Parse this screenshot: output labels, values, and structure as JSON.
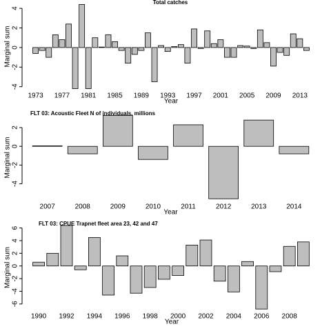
{
  "chart_data": [
    {
      "type": "bar",
      "title": "Total catches",
      "y_label": "Marginal sum",
      "x_label": "Year",
      "color": "#bebebe",
      "x": [
        1973,
        1974,
        1975,
        1976,
        1977,
        1978,
        1979,
        1980,
        1981,
        1982,
        1983,
        1984,
        1985,
        1986,
        1987,
        1988,
        1989,
        1990,
        1991,
        1992,
        1993,
        1994,
        1995,
        1996,
        1997,
        1998,
        1999,
        2000,
        2001,
        2002,
        2003,
        2004,
        2005,
        2006,
        2007,
        2008,
        2009,
        2010,
        2011,
        2012,
        2013,
        2014
      ],
      "values": [
        -0.6,
        -0.3,
        -1.0,
        1.3,
        0.8,
        2.4,
        -4.2,
        4.4,
        -4.2,
        1.0,
        0.05,
        1.3,
        0.6,
        -0.3,
        -1.6,
        -0.7,
        -0.3,
        1.5,
        -3.5,
        0.2,
        -0.4,
        0.1,
        0.3,
        -1.6,
        1.9,
        -0.1,
        1.7,
        0.4,
        0.8,
        -1.0,
        -1.0,
        0.2,
        0.15,
        -0.1,
        1.8,
        0.5,
        -1.9,
        -0.5,
        -0.8,
        1.4,
        0.9,
        -0.3
      ],
      "xlim": [
        1972,
        2015
      ],
      "xticks": [
        1973,
        1977,
        1981,
        1985,
        1989,
        1993,
        1997,
        2001,
        2005,
        2009,
        2013
      ],
      "ylim": [
        -4.3,
        4.5
      ],
      "yticks": [
        -4,
        -2,
        0,
        2,
        4
      ]
    },
    {
      "type": "bar",
      "title": "FLT 03: Acoustic Fleet   N of individuals, millions",
      "y_label": "Marginal sum",
      "x_label": "Year",
      "color": "#bebebe",
      "x": [
        2007,
        2008,
        2009,
        2010,
        2011,
        2012,
        2013,
        2014
      ],
      "values": [
        0.05,
        -0.8,
        3.3,
        -1.4,
        2.3,
        -5.6,
        2.8,
        -0.8
      ],
      "xlim": [
        2006.4,
        2014.6
      ],
      "xticks": [
        2007,
        2008,
        2009,
        2010,
        2011,
        2012,
        2013,
        2014
      ],
      "ylim": [
        -5.8,
        3.4
      ],
      "yticks": [
        -4,
        -2,
        0,
        2
      ]
    },
    {
      "type": "bar",
      "title": "FLT 03: CPUE Trapnet fleet area 23, 42 and 47",
      "y_label": "Marginal sum",
      "x_label": "Year",
      "color": "#bebebe",
      "x": [
        1990,
        1991,
        1992,
        1993,
        1994,
        1995,
        1996,
        1997,
        1998,
        1999,
        2000,
        2001,
        2002,
        2003,
        2004,
        2005,
        2006,
        2007,
        2008,
        2009
      ],
      "values": [
        0.6,
        2.0,
        6.4,
        -0.6,
        4.5,
        -4.6,
        1.6,
        -4.3,
        -3.4,
        -2.1,
        -1.5,
        3.3,
        4.1,
        -2.4,
        -4.1,
        0.7,
        -6.8,
        -0.9,
        3.1,
        3.8
      ],
      "xlim": [
        1989.5,
        2009.6
      ],
      "xticks": [
        1990,
        1992,
        1994,
        1996,
        1998,
        2000,
        2002,
        2004,
        2006,
        2008
      ],
      "ylim": [
        -7,
        6.5
      ],
      "yticks": [
        -6,
        -4,
        -2,
        0,
        2,
        4,
        6
      ]
    }
  ]
}
